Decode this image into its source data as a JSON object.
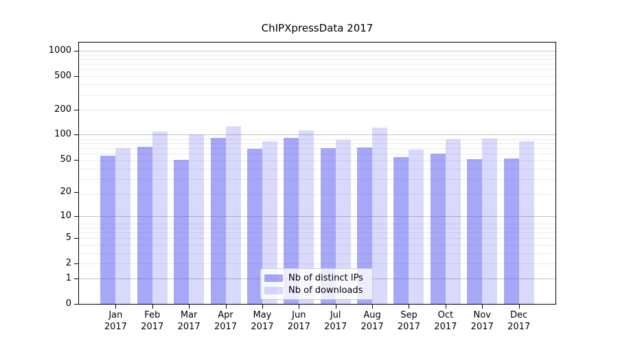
{
  "chart_data": {
    "type": "bar",
    "title": "ChIPXpressData 2017",
    "categories": [
      {
        "month": "Jan",
        "year": "2017"
      },
      {
        "month": "Feb",
        "year": "2017"
      },
      {
        "month": "Mar",
        "year": "2017"
      },
      {
        "month": "Apr",
        "year": "2017"
      },
      {
        "month": "May",
        "year": "2017"
      },
      {
        "month": "Jun",
        "year": "2017"
      },
      {
        "month": "Jul",
        "year": "2017"
      },
      {
        "month": "Aug",
        "year": "2017"
      },
      {
        "month": "Sep",
        "year": "2017"
      },
      {
        "month": "Oct",
        "year": "2017"
      },
      {
        "month": "Nov",
        "year": "2017"
      },
      {
        "month": "Dec",
        "year": "2017"
      }
    ],
    "series": [
      {
        "name": "Nb of distinct IPs",
        "base_color": "#5050f0",
        "alpha": 0.5,
        "values": [
          56,
          72,
          50,
          91,
          68,
          92,
          69,
          70,
          54,
          59,
          51,
          52
        ]
      },
      {
        "name": "Nb of downloads",
        "base_color": "#5050f0",
        "alpha": 0.22,
        "values": [
          69,
          109,
          100,
          126,
          84,
          113,
          86,
          121,
          66,
          88,
          90,
          83
        ]
      }
    ],
    "yscale": "log1p",
    "yticks": [
      0,
      1,
      2,
      5,
      10,
      20,
      50,
      100,
      200,
      500,
      1000
    ],
    "ylim": [
      0,
      1300
    ],
    "xlabel": "",
    "ylabel": "",
    "grid": true,
    "legend_position": "lower center inside",
    "colors": {
      "background": "#ffffff",
      "axis_border": "#000000",
      "grid_major": "#c2c2c2",
      "grid_minor": "#e9e9e9",
      "legend_border": "#cccccc"
    }
  }
}
